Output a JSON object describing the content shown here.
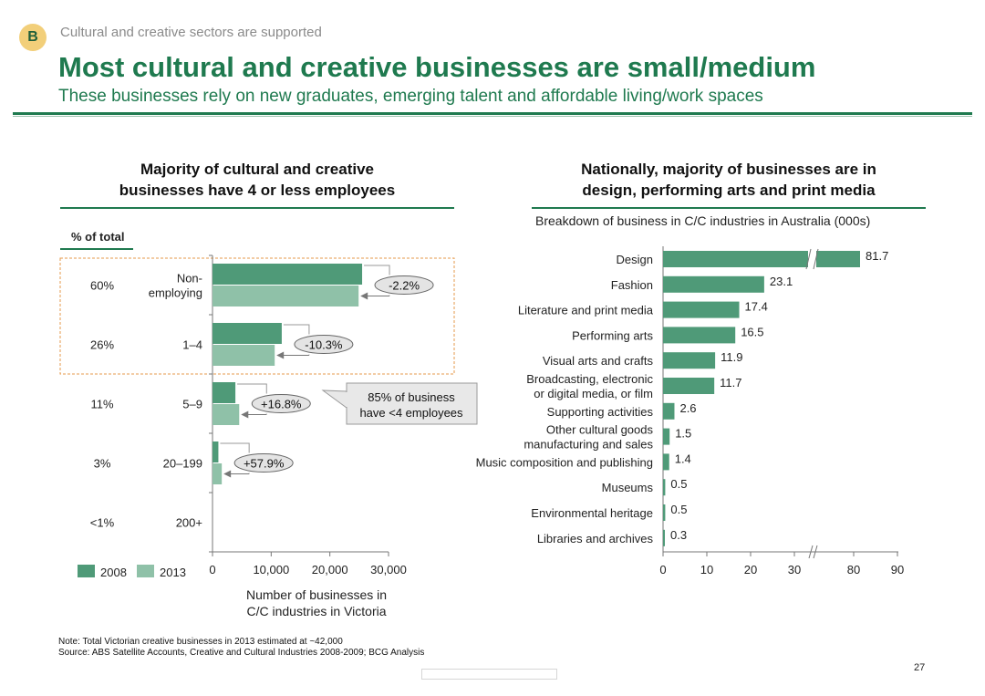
{
  "header": {
    "badge": "B",
    "section": "Cultural and creative sectors are supported",
    "title": "Most cultural and creative businesses are small/medium",
    "subtitle": "These businesses rely on new graduates, emerging talent and affordable living/work spaces"
  },
  "left_panel": {
    "title_line1": "Majority of cultural and creative",
    "title_line2": "businesses have 4 or less employees",
    "pct_header": "% of total",
    "callout_line1": "85% of business",
    "callout_line2": "have <4 employees",
    "legend": [
      {
        "label": "2008",
        "color": "#4f9a78"
      },
      {
        "label": "2013",
        "color": "#8fc1a8"
      }
    ],
    "xlabel_line1": "Number of businesses in",
    "xlabel_line2": "C/C industries in Victoria"
  },
  "right_panel": {
    "title_line1": "Nationally, majority of businesses are in",
    "title_line2": "design, performing arts and print media",
    "chart_title": "Breakdown of business in C/C industries in Australia (000s)"
  },
  "chart_data": [
    {
      "type": "bar",
      "orientation": "horizontal",
      "categories": [
        "Non-employing",
        "1–4",
        "5–9",
        "20–199",
        "200+"
      ],
      "category_display": [
        [
          "Non-",
          "employing"
        ],
        [
          "1–4"
        ],
        [
          "5–9"
        ],
        [
          "20–199"
        ],
        [
          "200+"
        ]
      ],
      "percent_of_total": [
        "60%",
        "26%",
        "11%",
        "3%",
        "<1%"
      ],
      "series": [
        {
          "name": "2008",
          "values": [
            25500,
            11800,
            3900,
            1000,
            0
          ]
        },
        {
          "name": "2013",
          "values": [
            24900,
            10600,
            4550,
            1580,
            0
          ]
        }
      ],
      "change_labels": [
        "-2.2%",
        "-10.3%",
        "+16.8%",
        "+57.9%"
      ],
      "xlim": [
        0,
        30000
      ],
      "xticks": [
        "0",
        "10,000",
        "20,000",
        "30,000"
      ],
      "xlabel": "Number of businesses in C/C industries in Victoria",
      "colors": {
        "2008": "#4f9a78",
        "2013": "#8fc1a8"
      }
    },
    {
      "type": "bar",
      "orientation": "horizontal",
      "title": "Breakdown of business in C/C industries in Australia (000s)",
      "categories": [
        "Design",
        "Fashion",
        "Literature and print media",
        "Performing arts",
        "Visual arts and crafts",
        "Broadcasting, electronic or digital media, or film",
        "Supporting activities",
        "Other cultural goods manufacturing and sales",
        "Music composition and publishing",
        "Museums",
        "Environmental heritage",
        "Libraries and archives"
      ],
      "category_display": [
        [
          "Design"
        ],
        [
          "Fashion"
        ],
        [
          "Literature and print media"
        ],
        [
          "Performing arts"
        ],
        [
          "Visual arts and crafts"
        ],
        [
          "Broadcasting, electronic",
          "or digital media, or film"
        ],
        [
          "Supporting activities"
        ],
        [
          "Other cultural goods",
          "manufacturing and sales"
        ],
        [
          "Music composition and publishing"
        ],
        [
          "Museums"
        ],
        [
          "Environmental heritage"
        ],
        [
          "Libraries and archives"
        ]
      ],
      "values": [
        81.7,
        23.1,
        17.4,
        16.5,
        11.9,
        11.7,
        2.6,
        1.5,
        1.4,
        0.5,
        0.5,
        0.3
      ],
      "value_labels": [
        "81.7",
        "23.1",
        "17.4",
        "16.5",
        "11.9",
        "11.7",
        "2.6",
        "1.5",
        "1.4",
        "0.5",
        "0.5",
        "0.3"
      ],
      "xticks": [
        "0",
        "10",
        "20",
        "30",
        "80",
        "90"
      ],
      "axis_break": [
        30,
        80
      ],
      "color": "#4f9a78"
    }
  ],
  "footer": {
    "note": "Note: Total Victorian creative businesses in 2013 estimated at ~42,000",
    "source": "Source: ABS Satellite Accounts, Creative and Cultural Industries 2008-2009; BCG Analysis",
    "page": "27"
  }
}
